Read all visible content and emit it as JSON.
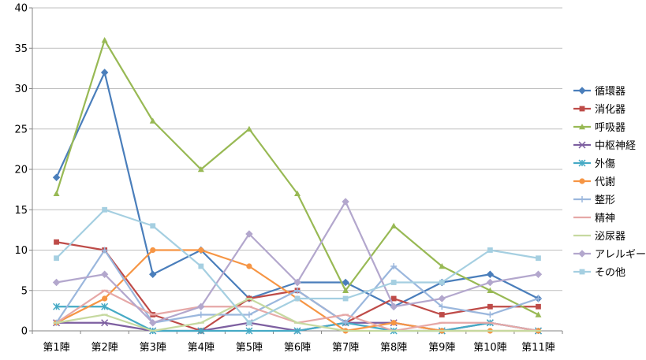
{
  "chart_data": {
    "type": "line",
    "categories": [
      "第1陣",
      "第2陣",
      "第3陣",
      "第4陣",
      "第5陣",
      "第6陣",
      "第7陣",
      "第8陣",
      "第9陣",
      "第10陣",
      "第11陣"
    ],
    "ylim": [
      0,
      40
    ],
    "yticks": [
      0,
      5,
      10,
      15,
      20,
      25,
      30,
      35,
      40
    ],
    "grid": "horizontal",
    "legend": "right",
    "series": [
      {
        "name": "循環器",
        "color": "#4a7ebb",
        "marker": "diamond",
        "values": [
          19,
          32,
          7,
          10,
          4,
          6,
          6,
          3,
          6,
          7,
          4
        ]
      },
      {
        "name": "消化器",
        "color": "#be4b48",
        "marker": "square",
        "values": [
          11,
          10,
          2,
          0,
          4,
          5,
          1,
          4,
          2,
          3,
          3
        ]
      },
      {
        "name": "呼吸器",
        "color": "#98b954",
        "marker": "triangle",
        "values": [
          17,
          36,
          26,
          20,
          25,
          17,
          5,
          13,
          8,
          5,
          2
        ]
      },
      {
        "name": "中枢神経",
        "color": "#7d5fa0",
        "marker": "x",
        "values": [
          1,
          1,
          0,
          0,
          1,
          0,
          1,
          1,
          0,
          1,
          0
        ]
      },
      {
        "name": "外傷",
        "color": "#46aac5",
        "marker": "star",
        "values": [
          3,
          3,
          0,
          0,
          0,
          0,
          1,
          0,
          0,
          1,
          0
        ]
      },
      {
        "name": "代謝",
        "color": "#f69544",
        "marker": "circle",
        "values": [
          1,
          4,
          10,
          10,
          8,
          4,
          0,
          1,
          0,
          0,
          0
        ]
      },
      {
        "name": "整形",
        "color": "#9bb7dd",
        "marker": "plus",
        "values": [
          1,
          10,
          1,
          2,
          2,
          5,
          1,
          8,
          3,
          2,
          4
        ]
      },
      {
        "name": "精神",
        "color": "#e6a8a7",
        "marker": "dash",
        "values": [
          1,
          5,
          2,
          3,
          3,
          1,
          2,
          0,
          1,
          1,
          0
        ]
      },
      {
        "name": "泌尿器",
        "color": "#c6d9a0",
        "marker": "dash",
        "values": [
          1,
          2,
          0,
          1,
          4,
          1,
          0,
          0,
          0,
          0,
          0
        ]
      },
      {
        "name": "アレルギー",
        "color": "#b3a7cd",
        "marker": "diamond",
        "values": [
          6,
          7,
          1,
          3,
          12,
          6,
          16,
          3,
          4,
          6,
          7
        ]
      },
      {
        "name": "その他",
        "color": "#a5cfe1",
        "marker": "square",
        "values": [
          9,
          15,
          13,
          8,
          1,
          4,
          4,
          6,
          6,
          10,
          9
        ]
      }
    ]
  }
}
